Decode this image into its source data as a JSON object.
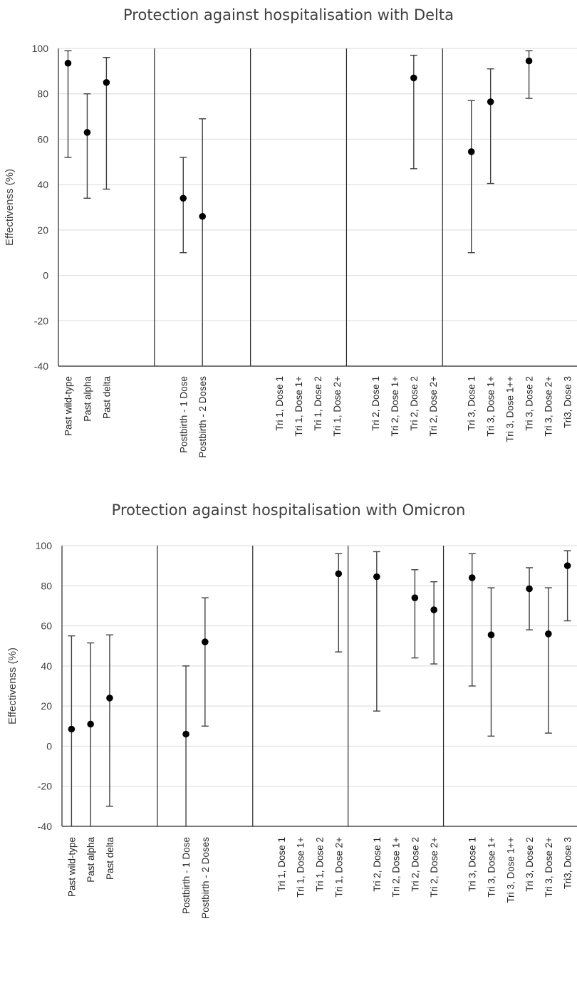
{
  "chart_data": [
    {
      "type": "scatter",
      "title": "Protection against hospitalisation with Delta",
      "ylabel": "Effectivenss (%)",
      "ylim": [
        -40,
        100
      ],
      "yticks": [
        -40,
        -20,
        0,
        20,
        40,
        60,
        80,
        100
      ],
      "grid": true,
      "categories": [
        "Past wild-type",
        "Past alpha",
        "Past delta",
        "",
        "",
        "",
        "Postbirth - 1 Dose",
        "Postbirth - 2 Doses",
        "",
        "",
        "",
        "Tri 1, Dose 1",
        "Tri 1, Dose 1+",
        "Tri 1, Dose 2",
        "Tri 1, Dose 2+",
        "",
        "Tri 2, Dose 1",
        "Tri 2, Dose 1+",
        "Tri 2, Dose 2",
        "Tri 2, Dose 2+",
        "",
        "Tri 3, Dose 1",
        "Tri 3, Dose 1+",
        "Tri 3, Dose 1++",
        "Tri 3, Dose 2",
        "Tri 3, Dose 2+",
        "Tri3, Dose 3"
      ],
      "group_separators_after_index": [
        4.5,
        9.5,
        14.5,
        19.5
      ],
      "points": [
        {
          "category": "Past wild-type",
          "value": 93.5,
          "lower": 52,
          "upper": 99
        },
        {
          "category": "Past alpha",
          "value": 63,
          "lower": 34,
          "upper": 80
        },
        {
          "category": "Past delta",
          "value": 85,
          "lower": 38,
          "upper": 96
        },
        {
          "category": "Postbirth - 1 Dose",
          "value": 34,
          "lower": 10,
          "upper": 52
        },
        {
          "category": "Postbirth - 2 Doses",
          "value": 26,
          "lower": -40,
          "upper": 69
        },
        {
          "category": "Tri 2, Dose 2",
          "value": 87,
          "lower": 47,
          "upper": 97
        },
        {
          "category": "Tri 3, Dose 1",
          "value": 54.5,
          "lower": 10,
          "upper": 77
        },
        {
          "category": "Tri 3, Dose 1+",
          "value": 76.5,
          "lower": 40.5,
          "upper": 91
        },
        {
          "category": "Tri 3, Dose 2",
          "value": 94.5,
          "lower": 78,
          "upper": 99
        }
      ]
    },
    {
      "type": "scatter",
      "title": "Protection against hospitalisation with Omicron",
      "ylabel": "Effectivenss (%)",
      "ylim": [
        -40,
        100
      ],
      "yticks": [
        -40,
        -20,
        0,
        20,
        40,
        60,
        80,
        100
      ],
      "grid": true,
      "categories": [
        "Past wild-type",
        "Past alpha",
        "Past delta",
        "",
        "",
        "",
        "Postbirth - 1 Dose",
        "Postbirth - 2 Doses",
        "",
        "",
        "",
        "Tri 1, Dose 1",
        "Tri 1, Dose 1+",
        "Tri 1, Dose 2",
        "Tri 1, Dose 2+",
        "",
        "Tri 2, Dose 1",
        "Tri 2, Dose 1+",
        "Tri 2, Dose 2",
        "Tri 2, Dose 2+",
        "",
        "Tri 3, Dose 1",
        "Tri 3, Dose 1+",
        "Tri 3, Dose 1++",
        "Tri 3, Dose 2",
        "Tri 3, Dose 2+",
        "Tri3, Dose 3"
      ],
      "group_separators_after_index": [
        4.5,
        9.5,
        14.5,
        19.5
      ],
      "points": [
        {
          "category": "Past wild-type",
          "value": 8.5,
          "lower": -40,
          "upper": 55
        },
        {
          "category": "Past alpha",
          "value": 11,
          "lower": -40,
          "upper": 51.5
        },
        {
          "category": "Past delta",
          "value": 24,
          "lower": -30,
          "upper": 55.5
        },
        {
          "category": "Postbirth - 1 Dose",
          "value": 6,
          "lower": -40,
          "upper": 40
        },
        {
          "category": "Postbirth - 2 Doses",
          "value": 52,
          "lower": 10,
          "upper": 74
        },
        {
          "category": "Tri 1, Dose 2+",
          "value": 86,
          "lower": 47,
          "upper": 96
        },
        {
          "category": "Tri 2, Dose 1",
          "value": 84.5,
          "lower": 17.5,
          "upper": 97
        },
        {
          "category": "Tri 2, Dose 2",
          "value": 74,
          "lower": 44,
          "upper": 88
        },
        {
          "category": "Tri 2, Dose 2+",
          "value": 68,
          "lower": 41,
          "upper": 82
        },
        {
          "category": "Tri 3, Dose 1",
          "value": 84,
          "lower": 30,
          "upper": 96
        },
        {
          "category": "Tri 3, Dose 1+",
          "value": 55.5,
          "lower": 5,
          "upper": 79
        },
        {
          "category": "Tri 3, Dose 2",
          "value": 78.5,
          "lower": 58,
          "upper": 89
        },
        {
          "category": "Tri 3, Dose 2+",
          "value": 56,
          "lower": 6.5,
          "upper": 79
        },
        {
          "category": "Tri3, Dose 3",
          "value": 90,
          "lower": 62.5,
          "upper": 97.5
        }
      ]
    }
  ]
}
